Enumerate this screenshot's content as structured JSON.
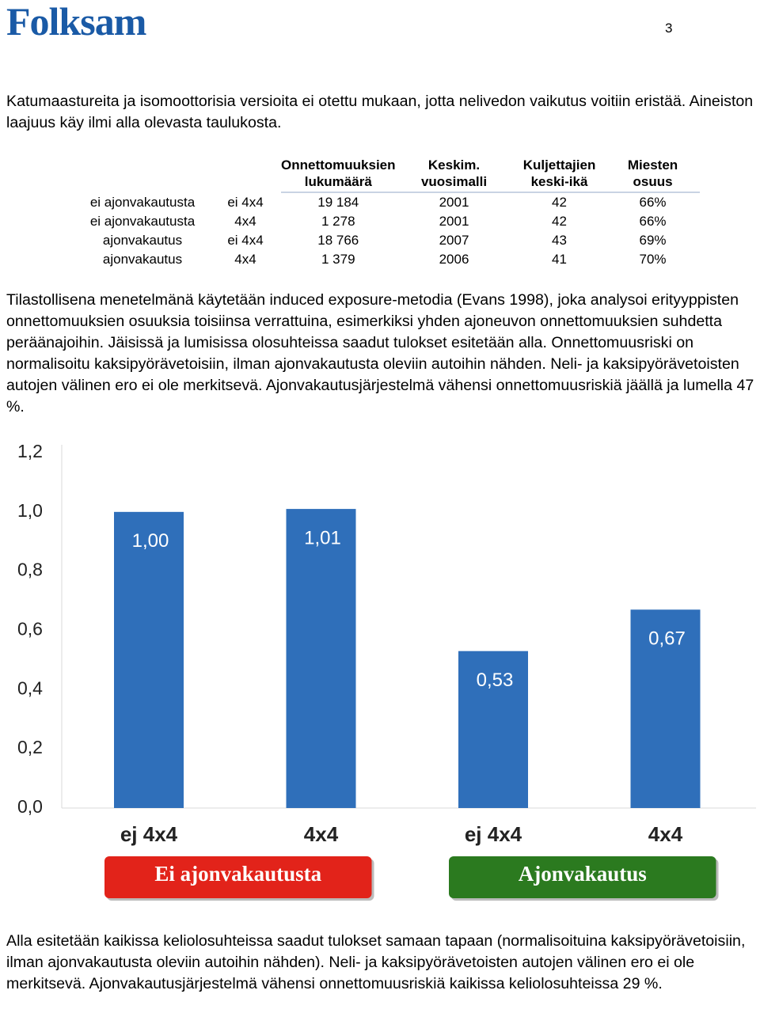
{
  "header": {
    "logo": "Folksam",
    "page_number": "3"
  },
  "paragraphs": [
    "Katumaastureita ja isomoottorisia versioita ei otettu mukaan, jotta nelivedon vaikutus voitiin eristää. Aineiston laajuus käy ilmi alla olevasta taulukosta.",
    "Tilastollisena menetelmänä käytetään induced exposure-metodia (Evans 1998), joka analysoi erityyppisten onnettomuuksien osuuksia toisiinsa verrattuina, esimerkiksi yhden ajoneuvon onnettomuuksien suhdetta peräänajoihin. Jäisissä ja lumisissa olosuhteissa saadut tulokset esitetään alla. Onnettomuusriski on normalisoitu kaksipyörävetoisiin, ilman ajonvakautusta oleviin autoihin nähden. Neli- ja kaksipyörävetoisten autojen välinen ero ei ole merkitsevä. Ajonvakautusjärjestelmä vähensi onnettomuusriskiä jäällä ja lumella 47 %.",
    "Alla esitetään kaikissa keliolosuhteissa saadut tulokset samaan tapaan (normalisoituina kaksipyörävetoisiin, ilman ajonvakautusta oleviin autoihin nähden). Neli- ja kaksipyörävetoisten autojen välinen ero ei ole merkitsevä. Ajonvakautusjärjestelmä vähensi onnettomuusriskiä kaikissa keliolosuhteissa 29 %."
  ],
  "table": {
    "headers": [
      [
        "Onnettomuuksien",
        "lukumäärä"
      ],
      [
        "Keskim.",
        "vuosimalli"
      ],
      [
        "Kuljettajien",
        "keski-ikä"
      ],
      [
        "Miesten",
        "osuus"
      ]
    ],
    "rows": [
      [
        "ei ajonvakautusta",
        "ei 4x4",
        "19 184",
        "2001",
        "42",
        "66%"
      ],
      [
        "ei ajonvakautusta",
        "4x4",
        "1 278",
        "2001",
        "42",
        "66%"
      ],
      [
        "ajonvakautus",
        "ei 4x4",
        "18 766",
        "2007",
        "43",
        "69%"
      ],
      [
        "ajonvakautus",
        "4x4",
        "1 379",
        "2006",
        "41",
        "70%"
      ]
    ]
  },
  "chart_data": {
    "type": "bar",
    "categories": [
      "ej 4x4",
      "4x4",
      "ej 4x4",
      "4x4"
    ],
    "values": [
      1.0,
      1.01,
      0.53,
      0.67
    ],
    "value_labels": [
      "1,00",
      "1,01",
      "0,53",
      "0,67"
    ],
    "color": "#2f6fba",
    "ylim": [
      0,
      1.2
    ],
    "yticks": [
      {
        "value": 0,
        "label": "0,0"
      },
      {
        "value": 0.2,
        "label": "0,2"
      },
      {
        "value": 0.4,
        "label": "0,4"
      },
      {
        "value": 0.6,
        "label": "0,6"
      },
      {
        "value": 0.8,
        "label": "0,8"
      },
      {
        "value": 1.0,
        "label": "1,0"
      },
      {
        "value": 1.2,
        "label": "1,2"
      }
    ],
    "grid": false,
    "groups": [
      {
        "label": "Ei ajonvakautusta",
        "color": "#e2231a"
      },
      {
        "label": "Ajonvakautus",
        "color": "#2b7a1f"
      }
    ]
  }
}
